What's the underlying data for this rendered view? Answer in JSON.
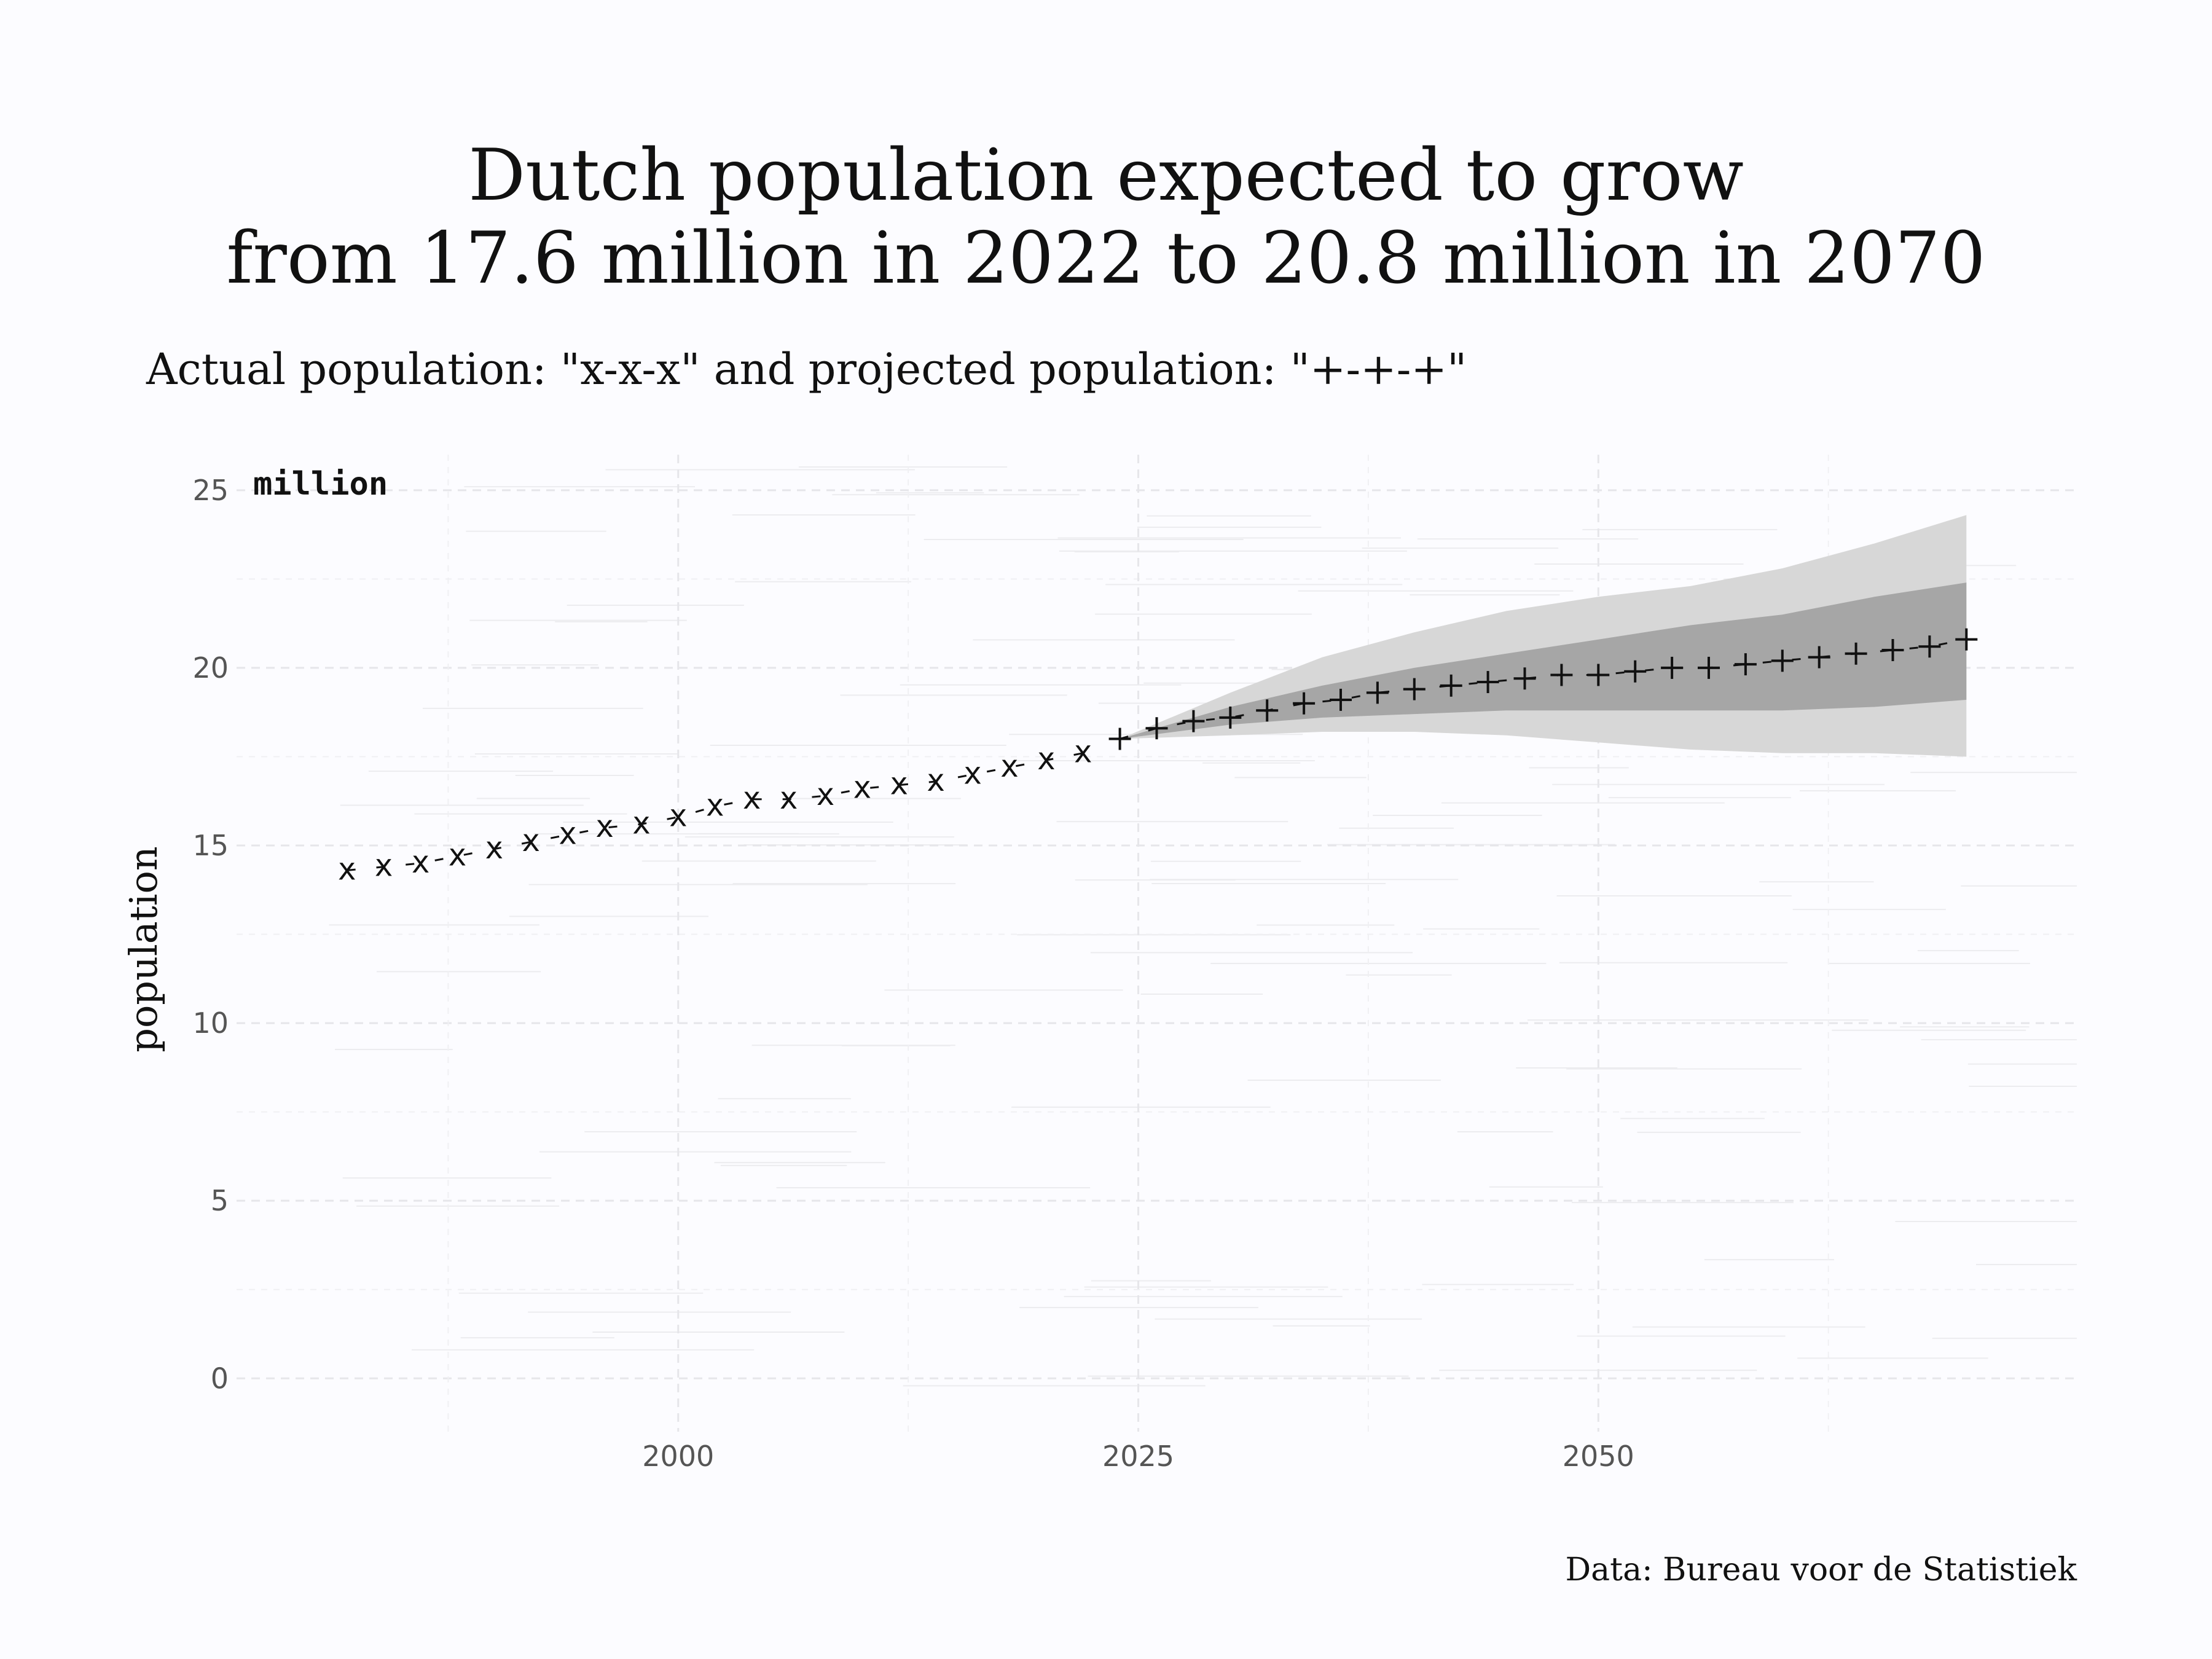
{
  "chart_data": {
    "type": "line",
    "title_lines": [
      "Dutch population expected to grow",
      "from 17.6 million in 2022 to 20.8 million in 2070"
    ],
    "subtitle": "Actual population: \"x-x-x\" and projected population: \"+-+-+\"",
    "ylabel": "population",
    "y_unit_label": "million",
    "caption": "Data: Bureau voor de Statistiek",
    "xlim": [
      1976,
      2076
    ],
    "ylim": [
      -1.5,
      26
    ],
    "x_ticks": [
      2000,
      2025,
      2050
    ],
    "y_ticks": [
      0,
      5,
      10,
      15,
      20,
      25
    ],
    "grid": true,
    "colors": {
      "background": "#fcfcff",
      "line": "#111111",
      "inner_band": "#a6a6a6",
      "outer_band": "#d7d7d7"
    },
    "series": [
      {
        "marker": "x",
        "x": [
          1982,
          1984,
          1986,
          1988,
          1990,
          1992,
          1994,
          1996,
          1998,
          2000,
          2002,
          2004,
          2006,
          2008,
          2010,
          2012,
          2014,
          2016,
          2018,
          2020,
          2022
        ],
        "values": [
          14.3,
          14.4,
          14.5,
          14.7,
          14.9,
          15.1,
          15.3,
          15.5,
          15.6,
          15.8,
          16.1,
          16.3,
          16.3,
          16.4,
          16.6,
          16.7,
          16.8,
          17.0,
          17.2,
          17.4,
          17.6
        ]
      },
      {
        "marker": "+",
        "x": [
          2024,
          2026,
          2028,
          2030,
          2032,
          2034,
          2036,
          2038,
          2040,
          2042,
          2044,
          2046,
          2048,
          2050,
          2052,
          2054,
          2056,
          2058,
          2060,
          2062,
          2064,
          2066,
          2068,
          2070
        ],
        "values": [
          18.0,
          18.3,
          18.5,
          18.6,
          18.8,
          19.0,
          19.1,
          19.3,
          19.4,
          19.5,
          19.6,
          19.7,
          19.8,
          19.8,
          19.9,
          20.0,
          20.0,
          20.1,
          20.2,
          20.3,
          20.4,
          20.5,
          20.6,
          20.8
        ]
      }
    ],
    "bands": [
      {
        "level": "outer",
        "x": [
          2024,
          2030,
          2035,
          2040,
          2045,
          2050,
          2055,
          2060,
          2065,
          2070
        ],
        "low": [
          18.0,
          18.1,
          18.2,
          18.2,
          18.1,
          17.9,
          17.7,
          17.6,
          17.6,
          17.5
        ],
        "high": [
          18.0,
          19.3,
          20.3,
          21.0,
          21.6,
          22.0,
          22.3,
          22.8,
          23.5,
          24.3
        ]
      },
      {
        "level": "inner",
        "x": [
          2024,
          2030,
          2035,
          2040,
          2045,
          2050,
          2055,
          2060,
          2065,
          2070
        ],
        "low": [
          18.0,
          18.4,
          18.6,
          18.7,
          18.8,
          18.8,
          18.8,
          18.8,
          18.9,
          19.1
        ],
        "high": [
          18.0,
          18.9,
          19.5,
          20.0,
          20.4,
          20.8,
          21.2,
          21.5,
          22.0,
          22.4
        ]
      }
    ]
  }
}
